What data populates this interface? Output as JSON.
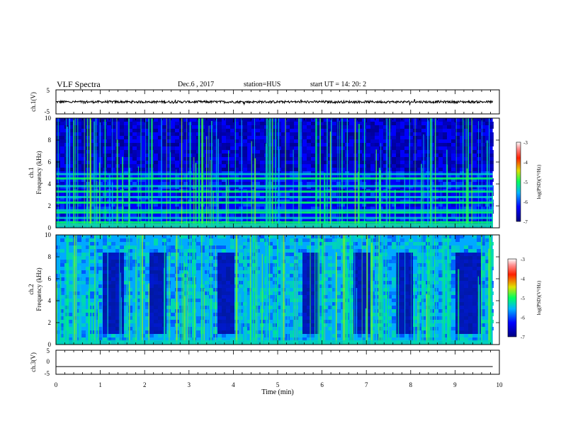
{
  "header": {
    "title": "VLF Spectra",
    "date": "Dec.6 , 2017",
    "station": "station=HUS",
    "start": "start  UT =   14: 20: 2"
  },
  "chart_data": [
    {
      "type": "line",
      "name": "ch.1 waveform",
      "ylabel": "ch.1(V)",
      "ylim": [
        -5,
        5
      ],
      "yticks": [
        "5",
        "-5"
      ],
      "xlim": [
        0,
        10
      ],
      "baseline_v": 0,
      "signal": "noisy waveform, amplitude about 0.5 V, ends near 9.85 min"
    },
    {
      "type": "heatmap",
      "name": "ch.1 spectrogram",
      "ylabel": "ch.1\nFrequency (kHz)",
      "ylim": [
        0,
        10
      ],
      "yticks": [
        "0",
        "2",
        "4",
        "6",
        "8",
        "10"
      ],
      "xlim": [
        0,
        10
      ],
      "data_end_min": 9.85,
      "colorbar": {
        "label": "log(PSD)(V²/Hz)",
        "ticks": [
          "-3",
          "-4",
          "-5",
          "-6",
          "-7"
        ],
        "range": [
          -7,
          -3
        ]
      },
      "horizontal_bands_khz": [
        0.5,
        0.9,
        1.4,
        1.6,
        2.3,
        2.8,
        3.3,
        3.8,
        4.5,
        4.9
      ],
      "background_level": -6.3
    },
    {
      "type": "heatmap",
      "name": "ch.2 spectrogram",
      "ylabel": "ch.2\nFrequency (kHz)",
      "ylim": [
        0,
        10
      ],
      "yticks": [
        "0",
        "2",
        "4",
        "6",
        "8",
        "10"
      ],
      "xlim": [
        0,
        10
      ],
      "data_end_min": 9.85,
      "colorbar": {
        "label": "log(PSD)(V²/Hz)",
        "ticks": [
          "-3",
          "-4",
          "-5",
          "-6",
          "-7"
        ],
        "range": [
          -7,
          -3
        ]
      },
      "quiet_intervals_min": [
        [
          1.05,
          1.45
        ],
        [
          2.1,
          2.4
        ],
        [
          3.6,
          4.0
        ],
        [
          5.5,
          5.85
        ],
        [
          6.7,
          7.0
        ],
        [
          7.6,
          8.0
        ],
        [
          8.95,
          9.5
        ]
      ],
      "background_level": -5.6
    },
    {
      "type": "line",
      "name": "ch.3 waveform",
      "ylabel": "ch.3(V)",
      "ylim": [
        -5,
        5
      ],
      "yticks": [
        "5",
        "0",
        "-5"
      ],
      "xlim": [
        0,
        10
      ],
      "baseline_v": -1.8
    }
  ],
  "xaxis": {
    "label": "Time (min)",
    "ticks": [
      "0",
      "1",
      "2",
      "3",
      "4",
      "5",
      "6",
      "7",
      "8",
      "9",
      "10"
    ]
  }
}
